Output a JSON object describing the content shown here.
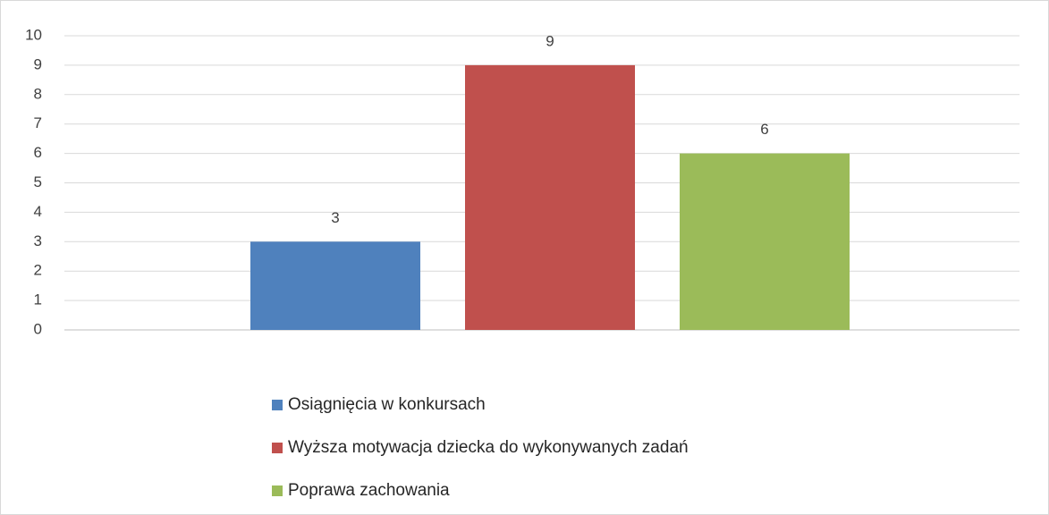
{
  "chart_data": {
    "type": "bar",
    "categories": [
      null
    ],
    "series": [
      {
        "name": "Osiągnięcia w konkursach",
        "color": "#4f81bd",
        "values": [
          3
        ]
      },
      {
        "name": "Wyższa motywacja dziecka do wykonywanych zadań",
        "color": "#c0504d",
        "values": [
          9
        ]
      },
      {
        "name": "Poprawa zachowania",
        "color": "#9bbb59",
        "values": [
          6
        ]
      }
    ],
    "ylim": [
      0,
      10
    ],
    "yticks": [
      0,
      1,
      2,
      3,
      4,
      5,
      6,
      7,
      8,
      9,
      10
    ],
    "grid": true,
    "legend": "bottom"
  }
}
